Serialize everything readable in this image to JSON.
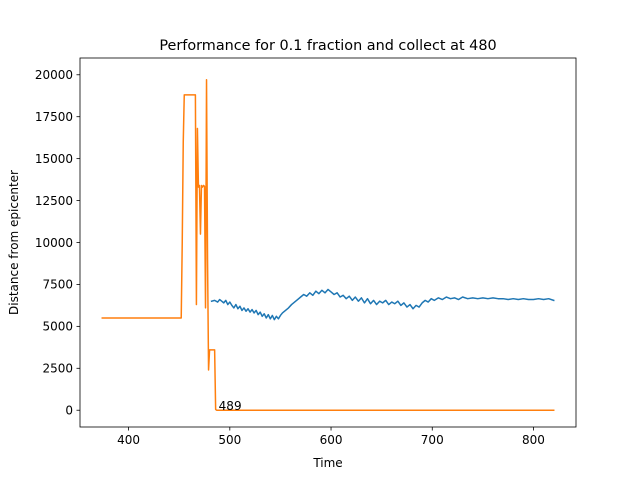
{
  "chart_data": {
    "type": "line",
    "title": "Performance for 0.1 fraction and collect at 480",
    "xlabel": "Time",
    "ylabel": "Distance from epicenter",
    "xlim": [
      352,
      842
    ],
    "ylim": [
      -1000,
      21000
    ],
    "xticks": [
      400,
      500,
      600,
      700,
      800
    ],
    "yticks": [
      0,
      2500,
      5000,
      7500,
      10000,
      12500,
      15000,
      17500,
      20000
    ],
    "grid": false,
    "legend": "none",
    "annotations": [
      {
        "text": "489",
        "x": 489,
        "y": 0
      }
    ],
    "series": [
      {
        "color": "#1f77b4",
        "x": [
          482,
          485,
          488,
          490,
          492,
          494,
          496,
          498,
          500,
          502,
          504,
          506,
          508,
          510,
          512,
          514,
          516,
          518,
          520,
          522,
          524,
          526,
          528,
          530,
          532,
          534,
          536,
          538,
          540,
          542,
          544,
          546,
          548,
          550,
          552,
          555,
          558,
          561,
          564,
          567,
          570,
          573,
          576,
          579,
          582,
          585,
          588,
          591,
          594,
          597,
          600,
          603,
          606,
          609,
          612,
          615,
          618,
          621,
          624,
          627,
          630,
          633,
          636,
          639,
          642,
          645,
          648,
          651,
          654,
          657,
          660,
          663,
          666,
          669,
          672,
          675,
          678,
          681,
          684,
          687,
          690,
          693,
          696,
          699,
          702,
          706,
          710,
          714,
          718,
          722,
          726,
          730,
          735,
          740,
          745,
          750,
          755,
          760,
          765,
          770,
          775,
          780,
          785,
          790,
          795,
          800,
          805,
          810,
          815,
          820
        ],
        "y": [
          6500,
          6550,
          6450,
          6600,
          6500,
          6400,
          6550,
          6300,
          6450,
          6250,
          6100,
          6300,
          6050,
          6200,
          5950,
          6100,
          5900,
          6050,
          5850,
          6000,
          5800,
          5950,
          5700,
          5850,
          5600,
          5750,
          5500,
          5700,
          5450,
          5650,
          5400,
          5600,
          5450,
          5650,
          5800,
          5950,
          6100,
          6300,
          6450,
          6600,
          6750,
          6900,
          6800,
          7000,
          6850,
          7100,
          6950,
          7150,
          7000,
          7200,
          7050,
          6900,
          7000,
          6750,
          6850,
          6650,
          6800,
          6550,
          6750,
          6500,
          6700,
          6400,
          6650,
          6350,
          6550,
          6300,
          6500,
          6400,
          6550,
          6300,
          6450,
          6350,
          6500,
          6250,
          6400,
          6150,
          6300,
          6050,
          6250,
          6150,
          6400,
          6550,
          6450,
          6650,
          6550,
          6700,
          6600,
          6750,
          6650,
          6700,
          6600,
          6750,
          6650,
          6700,
          6650,
          6700,
          6650,
          6700,
          6650,
          6650,
          6600,
          6650,
          6600,
          6650,
          6600,
          6600,
          6650,
          6600,
          6650,
          6550
        ]
      },
      {
        "color": "#ff7f0e",
        "x": [
          374,
          452,
          453,
          454,
          455,
          456,
          465,
          466,
          467,
          468,
          469,
          470,
          471,
          472,
          473,
          474,
          475,
          476,
          477,
          478,
          479,
          480,
          481,
          482,
          483,
          484,
          485,
          486,
          487,
          488,
          489,
          490,
          500,
          600,
          700,
          820
        ],
        "y": [
          5500,
          5500,
          10000,
          16000,
          18800,
          18800,
          18800,
          18800,
          6300,
          16800,
          13300,
          13400,
          10500,
          13400,
          13300,
          13400,
          13350,
          6100,
          19700,
          9000,
          2400,
          3600,
          3600,
          3600,
          3600,
          3600,
          3600,
          50,
          0,
          0,
          0,
          0,
          0,
          0,
          0,
          0
        ]
      }
    ]
  }
}
